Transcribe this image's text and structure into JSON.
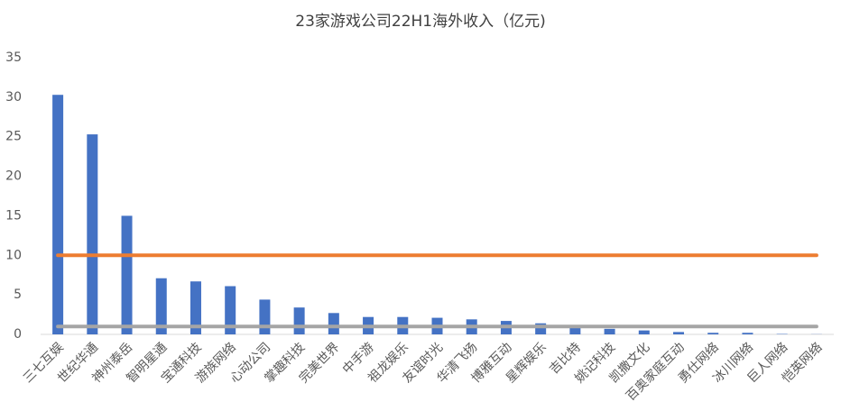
{
  "chart_data": {
    "type": "bar",
    "title": "23家游戏公司22H1海外收入（亿元)",
    "categories": [
      "三七互娱",
      "世纪华通",
      "神州泰岳",
      "智明星通",
      "宝通科技",
      "游族网络",
      "心动公司",
      "掌趣科技",
      "完美世界",
      "中手游",
      "祖龙娱乐",
      "友谊时光",
      "华清飞扬",
      "博雅互动",
      "星辉娱乐",
      "吉比特",
      "姚记科技",
      "凯撒文化",
      "百奥家庭互动",
      "勇仕网络",
      "冰川网络",
      "巨人网络",
      "恺英网络"
    ],
    "series": [
      {
        "type": "bar",
        "color": "#4472c4",
        "values": [
          30.3,
          25.3,
          15.0,
          7.1,
          6.7,
          6.1,
          4.4,
          3.4,
          2.7,
          2.2,
          2.2,
          2.1,
          1.9,
          1.7,
          1.4,
          1.0,
          0.7,
          0.5,
          0.3,
          0.2,
          0.2,
          0.05,
          0.02
        ]
      },
      {
        "type": "line",
        "color": "#ed7d31",
        "values": [
          10,
          10,
          10,
          10,
          10,
          10,
          10,
          10,
          10,
          10,
          10,
          10,
          10,
          10,
          10,
          10,
          10,
          10,
          10,
          10,
          10,
          10,
          10
        ]
      },
      {
        "type": "line",
        "color": "#a5a5a5",
        "values": [
          1,
          1,
          1,
          1,
          1,
          1,
          1,
          1,
          1,
          1,
          1,
          1,
          1,
          1,
          1,
          1,
          1,
          1,
          1,
          1,
          1,
          1,
          1
        ]
      }
    ],
    "ylim": [
      0,
      35
    ],
    "yticks": [
      0,
      5,
      10,
      15,
      20,
      25,
      30,
      35
    ],
    "grid": false
  }
}
